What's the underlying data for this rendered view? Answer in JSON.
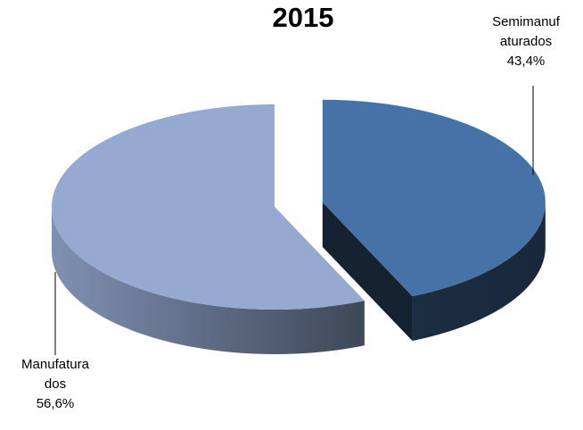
{
  "chart_data": {
    "type": "pie",
    "title": "2015",
    "categories": [
      "Semimanufaturados",
      "Manufaturados"
    ],
    "values": [
      43.4,
      56.6
    ],
    "value_labels": [
      "43,4%",
      "56,6%"
    ],
    "colors": [
      "#4672a8",
      "#95a9d1"
    ]
  }
}
